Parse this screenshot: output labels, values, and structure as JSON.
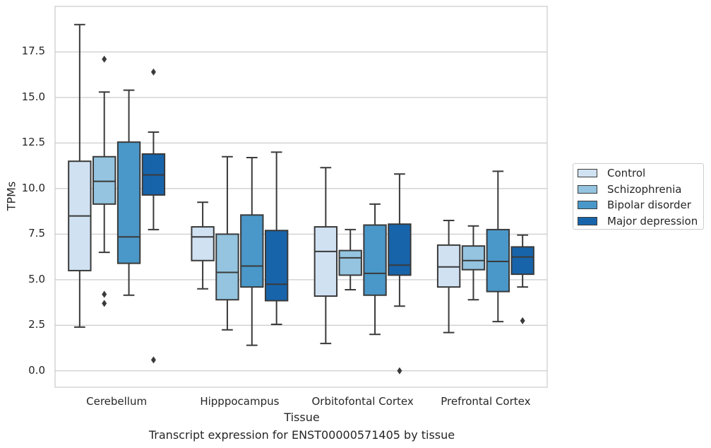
{
  "caption": "Transcript expression for ENST00000571405 by tissue",
  "chart_data": {
    "type": "box",
    "title": "",
    "xlabel": "Tissue",
    "ylabel": "TPMs",
    "ylim": [
      -0.9,
      20.0
    ],
    "yticks": [
      0.0,
      2.5,
      5.0,
      7.5,
      10.0,
      12.5,
      15.0,
      17.5
    ],
    "ytick_labels": [
      "0.0",
      "2.5",
      "5.0",
      "7.5",
      "10.0",
      "12.5",
      "15.0",
      "17.5"
    ],
    "grid": "horizontal",
    "legend_position": "right",
    "categories": [
      "Cerebellum",
      "Hipppocampus",
      "Orbitofontal Cortex",
      "Prefrontal Cortex"
    ],
    "series": [
      {
        "name": "Control",
        "color": "#d0e1f2",
        "boxes": [
          {
            "whisker_low": 2.4,
            "q1": 5.5,
            "median": 8.5,
            "q3": 11.5,
            "whisker_high": 19.0,
            "outliers": []
          },
          {
            "whisker_low": 4.5,
            "q1": 6.05,
            "median": 7.35,
            "q3": 7.9,
            "whisker_high": 9.25,
            "outliers": []
          },
          {
            "whisker_low": 1.5,
            "q1": 4.1,
            "median": 6.55,
            "q3": 7.9,
            "whisker_high": 11.15,
            "outliers": []
          },
          {
            "whisker_low": 2.1,
            "q1": 4.6,
            "median": 5.7,
            "q3": 6.9,
            "whisker_high": 8.25,
            "outliers": []
          }
        ]
      },
      {
        "name": "Schizophrenia",
        "color": "#94c4df",
        "boxes": [
          {
            "whisker_low": 6.5,
            "q1": 9.15,
            "median": 10.4,
            "q3": 11.75,
            "whisker_high": 15.3,
            "outliers": [
              17.1,
              4.2,
              3.7
            ]
          },
          {
            "whisker_low": 2.25,
            "q1": 3.9,
            "median": 5.4,
            "q3": 7.5,
            "whisker_high": 11.75,
            "outliers": []
          },
          {
            "whisker_low": 4.45,
            "q1": 5.25,
            "median": 6.2,
            "q3": 6.6,
            "whisker_high": 7.75,
            "outliers": []
          },
          {
            "whisker_low": 3.9,
            "q1": 5.55,
            "median": 6.05,
            "q3": 6.85,
            "whisker_high": 7.95,
            "outliers": []
          }
        ]
      },
      {
        "name": "Bipolar disorder",
        "color": "#4a98c9",
        "boxes": [
          {
            "whisker_low": 4.15,
            "q1": 5.9,
            "median": 7.35,
            "q3": 12.55,
            "whisker_high": 15.4,
            "outliers": []
          },
          {
            "whisker_low": 1.4,
            "q1": 4.6,
            "median": 5.75,
            "q3": 8.55,
            "whisker_high": 11.7,
            "outliers": []
          },
          {
            "whisker_low": 2.0,
            "q1": 4.15,
            "median": 5.35,
            "q3": 8.0,
            "whisker_high": 9.15,
            "outliers": []
          },
          {
            "whisker_low": 2.7,
            "q1": 4.35,
            "median": 6.0,
            "q3": 7.75,
            "whisker_high": 10.95,
            "outliers": []
          }
        ]
      },
      {
        "name": "Major depression",
        "color": "#1764ab",
        "boxes": [
          {
            "whisker_low": 7.75,
            "q1": 9.65,
            "median": 10.75,
            "q3": 11.9,
            "whisker_high": 13.1,
            "outliers": [
              16.4,
              0.6
            ]
          },
          {
            "whisker_low": 2.55,
            "q1": 3.85,
            "median": 4.75,
            "q3": 7.7,
            "whisker_high": 12.0,
            "outliers": []
          },
          {
            "whisker_low": 3.55,
            "q1": 5.25,
            "median": 5.8,
            "q3": 8.05,
            "whisker_high": 10.8,
            "outliers": [
              0.0
            ]
          },
          {
            "whisker_low": 4.6,
            "q1": 5.3,
            "median": 6.25,
            "q3": 6.8,
            "whisker_high": 7.45,
            "outliers": [
              2.75
            ]
          }
        ]
      }
    ]
  }
}
